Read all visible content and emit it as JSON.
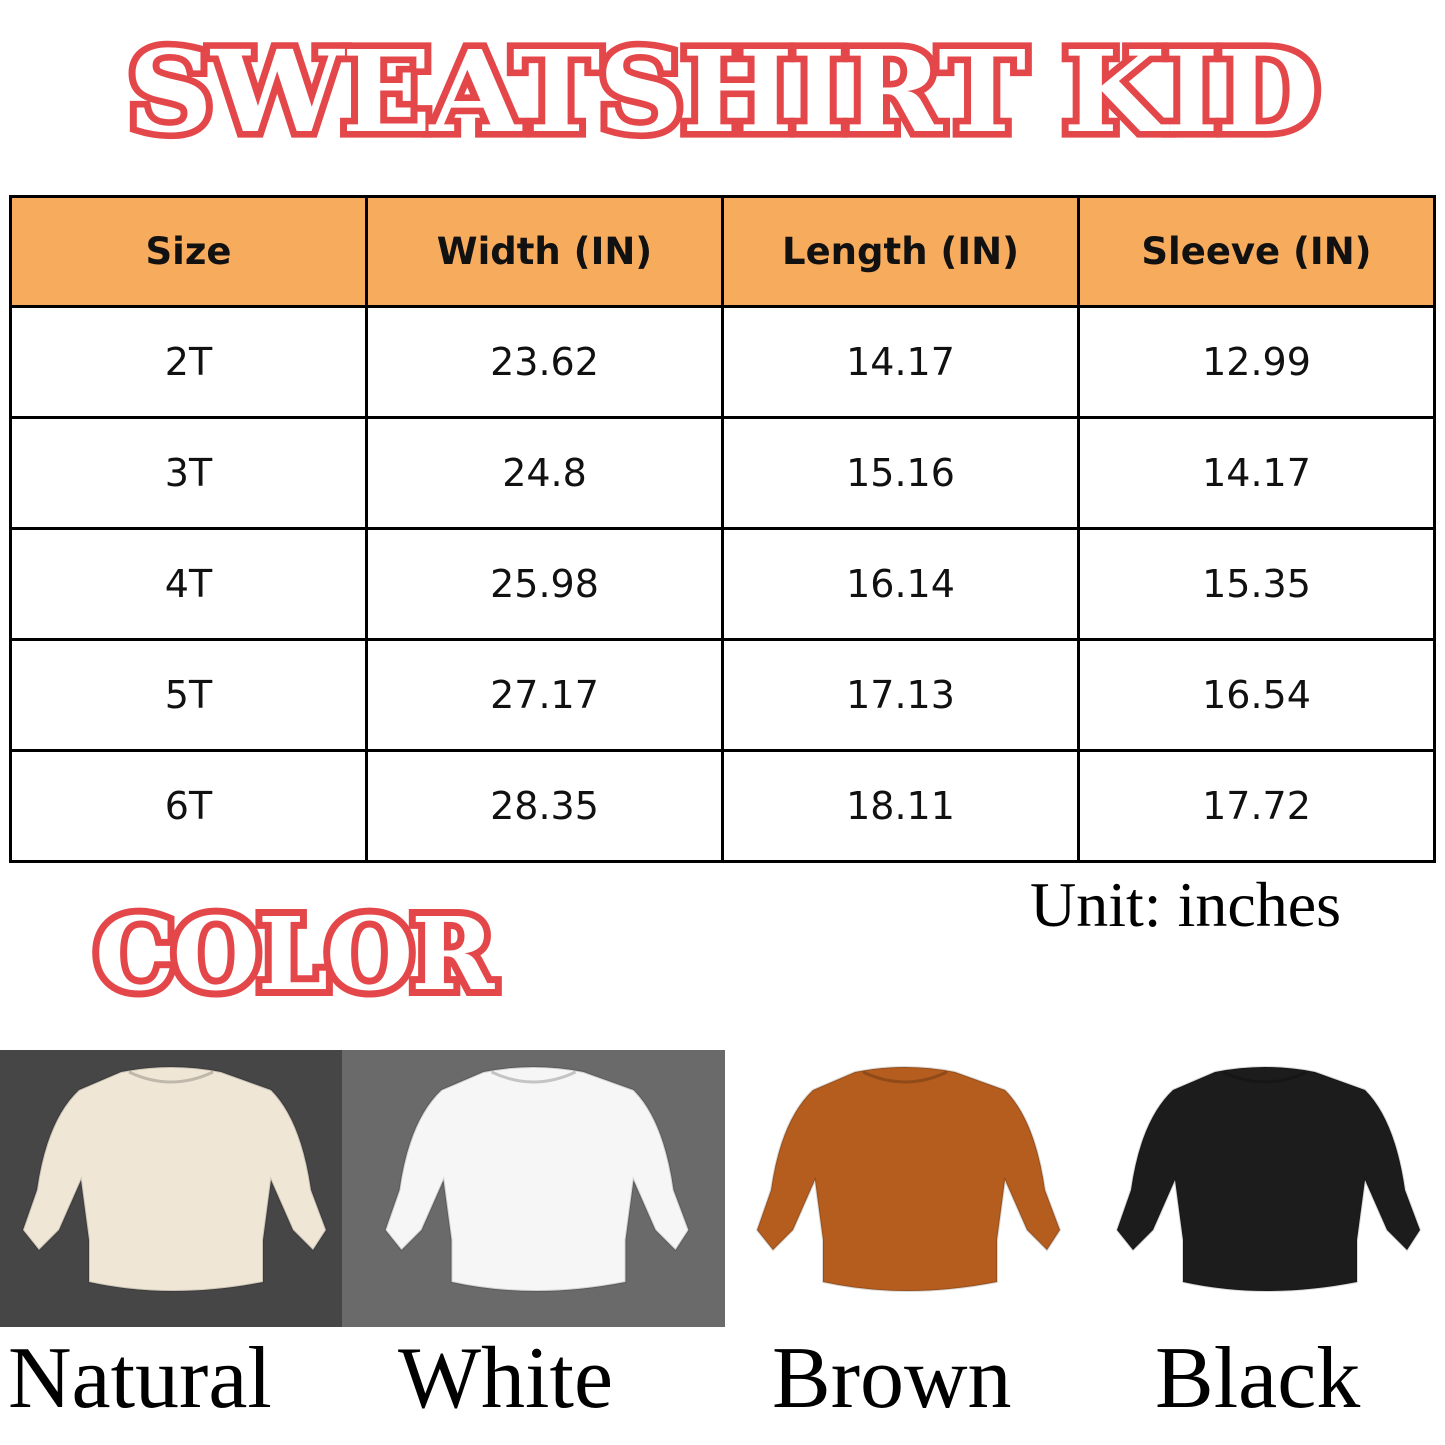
{
  "title": "SWEATSHIRT KID",
  "table": {
    "headers": [
      "Size",
      "Width (IN)",
      "Length (IN)",
      "Sleeve (IN)"
    ],
    "rows": [
      [
        "2T",
        "23.62",
        "14.17",
        "12.99"
      ],
      [
        "3T",
        "24.8",
        "15.16",
        "14.17"
      ],
      [
        "4T",
        "25.98",
        "16.14",
        "15.35"
      ],
      [
        "5T",
        "27.17",
        "17.13",
        "16.54"
      ],
      [
        "6T",
        "28.35",
        "18.11",
        "17.72"
      ]
    ]
  },
  "unit": "Unit: inches",
  "color_heading": "COLOR",
  "colors": [
    {
      "label": "Natural",
      "swatch": "#efe6d6",
      "background": "#464646"
    },
    {
      "label": "White",
      "swatch": "#f6f6f6",
      "background": "#6a6a6a"
    },
    {
      "label": "Brown",
      "swatch": "#b45d1f",
      "background": "#ffffff"
    },
    {
      "label": "Black",
      "swatch": "#1c1c1c",
      "background": "#ffffff"
    }
  ],
  "accent": "#e4474a",
  "header_color": "#f7ab5c"
}
